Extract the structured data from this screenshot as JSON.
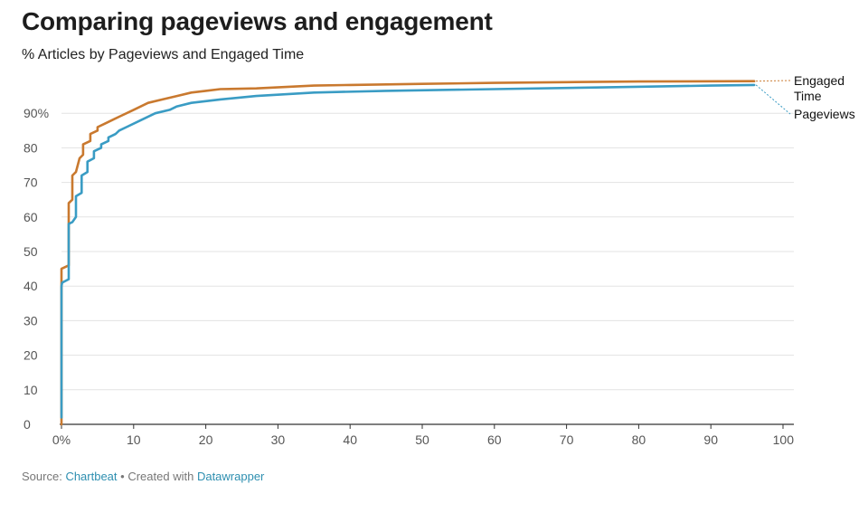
{
  "header": {
    "title": "Comparing pageviews and engagement",
    "subtitle": "% Articles by Pageviews and Engaged Time"
  },
  "footer": {
    "source_prefix": "Source:",
    "source_name": "Chartbeat",
    "separator": "•",
    "created_prefix": "Created with",
    "tool_name": "Datawrapper"
  },
  "colors": {
    "engaged_time": "#c9792f",
    "pageviews": "#3a9cc4",
    "grid": "#e3e3e3",
    "axis": "#333333",
    "link": "#2e8fb0"
  },
  "chart_data": {
    "type": "line",
    "title": "Comparing pageviews and engagement",
    "subtitle": "% Articles by Pageviews and Engaged Time",
    "xlim": [
      0,
      100
    ],
    "ylim": [
      0,
      100
    ],
    "x_ticks": [
      0,
      10,
      20,
      30,
      40,
      50,
      60,
      70,
      80,
      90,
      100
    ],
    "x_tick_labels": [
      "0%",
      "10",
      "20",
      "30",
      "40",
      "50",
      "60",
      "70",
      "80",
      "90",
      "100"
    ],
    "y_ticks": [
      0,
      10,
      20,
      30,
      40,
      50,
      60,
      70,
      80,
      90
    ],
    "y_tick_labels": [
      "0",
      "10",
      "20",
      "30",
      "40",
      "50",
      "60",
      "70",
      "80",
      "90%"
    ],
    "grid": "horizontal",
    "legend": "right, at line ends",
    "series": [
      {
        "name": "Engaged Time",
        "color": "#c9792f",
        "x": [
          0,
          0,
          1,
          1,
          1.5,
          1.5,
          2,
          2,
          2.5,
          2.5,
          3,
          3,
          4,
          4,
          5,
          5,
          6,
          6,
          7,
          7,
          8,
          8,
          10,
          12,
          14,
          16,
          18,
          20,
          22,
          27,
          35,
          40,
          50,
          60,
          70,
          80,
          96
        ],
        "y": [
          0,
          45,
          46,
          64,
          65,
          72,
          73,
          73,
          77,
          77,
          78,
          81,
          82,
          84,
          85,
          86,
          87,
          87,
          88,
          88,
          89,
          89,
          91,
          93,
          94,
          95,
          96,
          96.5,
          97,
          97.2,
          98,
          98.2,
          98.5,
          98.8,
          99,
          99.2,
          99.3
        ]
      },
      {
        "name": "Pageviews",
        "color": "#3a9cc4",
        "x": [
          0,
          0,
          0.1,
          1,
          1,
          1.5,
          2,
          2,
          2.8,
          2.8,
          3.6,
          3.6,
          4.5,
          4.5,
          5.5,
          5.5,
          6.5,
          6.5,
          7.5,
          8,
          9,
          11,
          13,
          15,
          16,
          18,
          22,
          27,
          35,
          45,
          60,
          75,
          90,
          96
        ],
        "y": [
          2,
          40,
          41,
          42,
          58,
          58.5,
          60,
          66,
          67,
          72,
          73,
          76,
          77,
          79,
          80,
          81,
          82,
          83,
          84,
          85,
          86,
          88,
          90,
          91,
          92,
          93,
          94,
          95,
          96,
          96.5,
          97,
          97.5,
          98,
          98.2
        ]
      }
    ]
  }
}
